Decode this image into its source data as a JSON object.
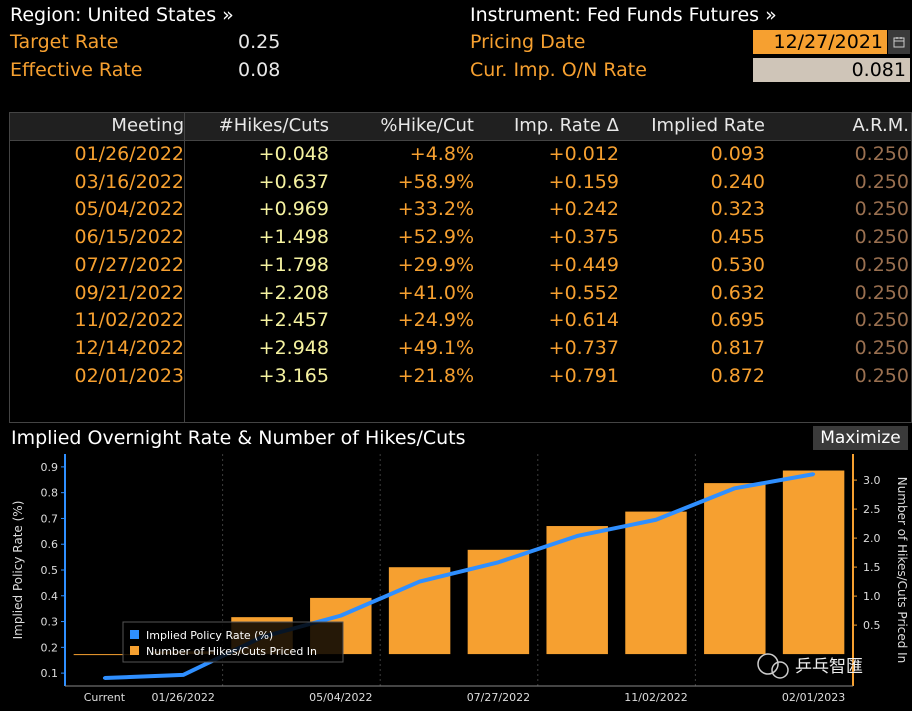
{
  "header": {
    "region_label": "Region: United States »",
    "instrument_label": "Instrument: Fed Funds Futures »",
    "target_rate_label": "Target Rate",
    "target_rate_value": "0.25",
    "effective_rate_label": "Effective Rate",
    "effective_rate_value": "0.08",
    "pricing_date_label": "Pricing Date",
    "pricing_date_value": "12/27/2021",
    "cur_imp_label": "Cur. Imp. O/N Rate",
    "cur_imp_value": "0.081",
    "calendar_icon": "calendar-icon"
  },
  "table": {
    "columns": [
      "Meeting",
      "#Hikes/Cuts",
      "%Hike/Cut",
      "Imp. Rate Δ",
      "Implied Rate",
      "A.R.M."
    ],
    "rows": [
      [
        "01/26/2022",
        "+0.048",
        "+4.8%",
        "+0.012",
        "0.093",
        "0.250"
      ],
      [
        "03/16/2022",
        "+0.637",
        "+58.9%",
        "+0.159",
        "0.240",
        "0.250"
      ],
      [
        "05/04/2022",
        "+0.969",
        "+33.2%",
        "+0.242",
        "0.323",
        "0.250"
      ],
      [
        "06/15/2022",
        "+1.498",
        "+52.9%",
        "+0.375",
        "0.455",
        "0.250"
      ],
      [
        "07/27/2022",
        "+1.798",
        "+29.9%",
        "+0.449",
        "0.530",
        "0.250"
      ],
      [
        "09/21/2022",
        "+2.208",
        "+41.0%",
        "+0.552",
        "0.632",
        "0.250"
      ],
      [
        "11/02/2022",
        "+2.457",
        "+24.9%",
        "+0.614",
        "0.695",
        "0.250"
      ],
      [
        "12/14/2022",
        "+2.948",
        "+49.1%",
        "+0.737",
        "0.817",
        "0.250"
      ],
      [
        "02/01/2023",
        "+3.165",
        "+21.8%",
        "+0.791",
        "0.872",
        "0.250"
      ]
    ]
  },
  "chart_section": {
    "title": "Implied Overnight Rate & Number of Hikes/Cuts",
    "maximize_label": "Maximize",
    "watermark": "乒乓智匯"
  },
  "chart_data": {
    "type": "bar",
    "ylabel": "Implied Policy Rate (%)",
    "y2label": "Number of Hikes/Cuts Priced In",
    "ylim": [
      0.05,
      0.95
    ],
    "y2lim": [
      -0.55,
      3.45
    ],
    "yticks": [
      "0.1",
      "0.2",
      "0.3",
      "0.4",
      "0.5",
      "0.6",
      "0.7",
      "0.8",
      "0.9"
    ],
    "y2ticks": [
      "0.5",
      "1.0",
      "1.5",
      "2.0",
      "2.5",
      "3.0"
    ],
    "x_tick_labels": [
      "Current",
      "01/26/2022",
      "05/04/2022",
      "07/27/2022",
      "11/02/2022",
      "02/01/2023"
    ],
    "categories": [
      "Current",
      "01/26/2022",
      "03/16/2022",
      "05/04/2022",
      "06/15/2022",
      "07/27/2022",
      "09/21/2022",
      "11/02/2022",
      "12/14/2022",
      "02/01/2023"
    ],
    "legend_position": "bottom-left",
    "series": [
      {
        "name": "Implied Policy Rate (%)",
        "type": "line",
        "color": "#2f8fff",
        "values": [
          0.081,
          0.093,
          0.24,
          0.323,
          0.455,
          0.53,
          0.632,
          0.695,
          0.817,
          0.872
        ]
      },
      {
        "name": "Number of Hikes/Cuts Priced In",
        "type": "bar",
        "color": "#f6a030",
        "values": [
          0.0,
          0.048,
          0.637,
          0.969,
          1.498,
          1.798,
          2.208,
          2.457,
          2.948,
          3.165
        ]
      }
    ]
  }
}
